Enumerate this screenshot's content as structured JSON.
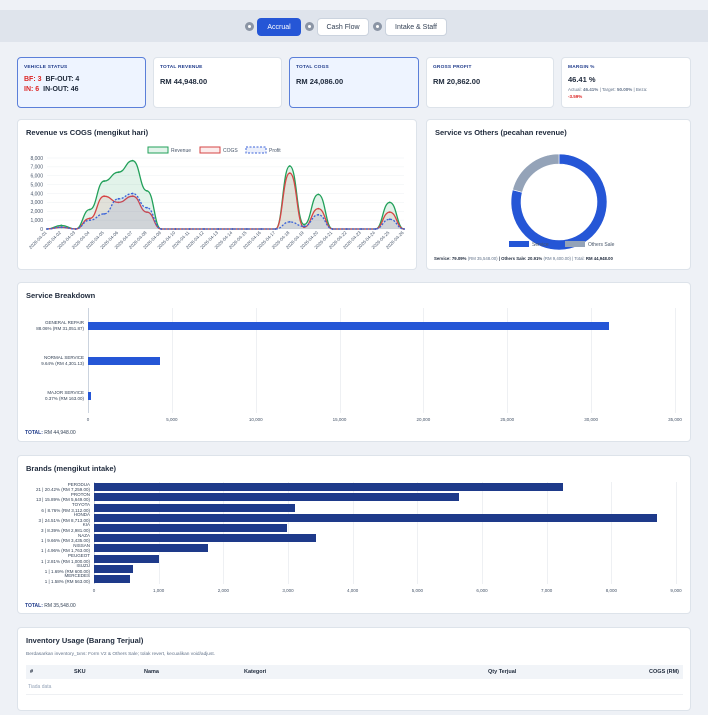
{
  "toolbar": {
    "tabs": [
      {
        "label": "Accrual",
        "active": true
      },
      {
        "label": "Cash Flow",
        "active": false
      },
      {
        "label": "Intake & Staff",
        "active": false
      }
    ]
  },
  "kpis": {
    "vehicle_status": {
      "label": "VEHICLE STATUS",
      "bf_label": "BF: 3",
      "bf_out": "BF-OUT: 4",
      "in_label": "IN: 6",
      "in_out": "IN-OUT: 46"
    },
    "total_revenue": {
      "label": "TOTAL REVENUE",
      "value": "RM 44,948.00"
    },
    "total_cogs": {
      "label": "TOTAL COGS",
      "value": "RM 24,086.00"
    },
    "gross_profit": {
      "label": "GROSS PROFIT",
      "value": "RM 20,862.00"
    },
    "margin": {
      "label": "MARGIN %",
      "value": "46.41 %",
      "actual_label": "Actual:",
      "actual_value": "46.41%",
      "target_label": "| Target:",
      "target_value": "50.00%",
      "beza_label": "| Beza:",
      "beza_value": "-3.59%"
    }
  },
  "colors": {
    "accent": "#2556d6",
    "revenue": "#22a05a",
    "cogs": "#d64545",
    "profit": "#3b63d8",
    "others": "#94a3b8",
    "negative": "#dc2626"
  },
  "revenue_chart": {
    "title": "Revenue vs COGS (mengikut hari)",
    "chart_data": {
      "type": "line",
      "x": [
        "2026-04-01",
        "2026-04-02",
        "2026-04-03",
        "2026-04-04",
        "2026-04-05",
        "2026-04-06",
        "2026-04-07",
        "2026-04-08",
        "2026-04-09",
        "2026-04-10",
        "2026-04-11",
        "2026-04-12",
        "2026-04-13",
        "2026-04-14",
        "2026-04-15",
        "2026-04-16",
        "2026-04-17",
        "2026-04-18",
        "2026-04-19",
        "2026-04-20",
        "2026-04-21",
        "2026-04-22",
        "2026-04-23",
        "2026-04-24",
        "2026-04-25",
        "2026-04-26"
      ],
      "tick_labels": [
        "2026-04-01",
        "2026-04-02",
        "2026-04-03",
        "2026-04-04",
        "2026-04-05",
        "2026-04-06",
        "2026-04-07",
        "2026-04-08",
        "2026-04-09",
        "2026-04-10",
        "2026-04-11",
        "2026-04-12",
        "2026-04-13",
        "2026-04-14",
        "2026-04-15",
        "2026-04-16",
        "2026-04-17",
        "2026-04-18",
        "2026-04-19",
        "2026-04-20",
        "2026-04-21",
        "2026-04-22",
        "2026-04-23",
        "2026-04-24",
        "2026-04-25",
        "2026-04-26"
      ],
      "series": [
        {
          "name": "Revenue",
          "values": [
            0,
            400,
            0,
            2200,
            5400,
            6400,
            7700,
            4300,
            0,
            0,
            0,
            0,
            0,
            0,
            0,
            0,
            0,
            7100,
            500,
            3900,
            0,
            0,
            0,
            0,
            3000,
            0
          ]
        },
        {
          "name": "COGS",
          "values": [
            0,
            200,
            0,
            1200,
            3700,
            3000,
            3700,
            1900,
            0,
            0,
            0,
            0,
            0,
            0,
            0,
            0,
            0,
            6300,
            200,
            2300,
            0,
            0,
            0,
            0,
            1900,
            0
          ]
        },
        {
          "name": "Profit",
          "values": [
            0,
            200,
            0,
            1000,
            1700,
            3400,
            4000,
            2400,
            0,
            0,
            0,
            0,
            0,
            0,
            0,
            0,
            0,
            800,
            300,
            1600,
            0,
            0,
            0,
            0,
            1100,
            0
          ]
        }
      ],
      "y_ticks": [
        "0",
        "1,000",
        "2,000",
        "3,000",
        "4,000",
        "5,000",
        "6,000",
        "7,000",
        "8,000"
      ],
      "ylim": [
        0,
        8000
      ],
      "legend": "top-center"
    }
  },
  "donut_chart": {
    "title": "Service vs Others (pecahan revenue)",
    "chart_data": {
      "type": "pie",
      "labels": [
        "Service",
        "Others Sale"
      ],
      "values": [
        79.09,
        20.91
      ]
    },
    "footer": {
      "service": "Service: 79.09%",
      "service_rm": "(RM 35,548.00)",
      "others": "| Others Sale: 20.91%",
      "others_rm": "(RM 9,400.00)",
      "total": "| Total:",
      "total_value": "RM 44,948.00"
    }
  },
  "service_chart": {
    "title": "Service Breakdown",
    "chart_data": {
      "type": "bar",
      "orientation": "horizontal",
      "categories": [
        {
          "name": "GENERAL REPAIR",
          "sub": "88.06% (RM 31,051.87)"
        },
        {
          "name": "NORMAL SERVICE",
          "sub": "9.64% (RM 4,301.13)"
        },
        {
          "name": "MAJOR SERVICE",
          "sub": "0.37% (RM 163.00)"
        }
      ],
      "values": [
        31051.87,
        4301.13,
        163.0
      ],
      "x_ticks": [
        "0",
        "5,000",
        "10,000",
        "15,000",
        "20,000",
        "25,000",
        "30,000",
        "35,000"
      ],
      "xlim": [
        0,
        35000
      ]
    },
    "total_label": "TOTAL:",
    "total_value": "RM 44,948.00"
  },
  "brands_chart": {
    "title": "Brands (mengikut intake)",
    "chart_data": {
      "type": "bar",
      "orientation": "horizontal",
      "categories": [
        {
          "name": "PERODUA",
          "sub": "21 | 20.42% (RM 7,259.00)"
        },
        {
          "name": "PROTON",
          "sub": "13 | 15.89% (RM 5,649.00)"
        },
        {
          "name": "TOYOTA",
          "sub": "6 | 8.76% (RM 3,112.00)"
        },
        {
          "name": "HONDA",
          "sub": "3 | 24.51% (RM 8,713.00)"
        },
        {
          "name": "KIA",
          "sub": "3 | 8.39% (RM 2,981.00)"
        },
        {
          "name": "NAZA",
          "sub": "1 | 9.66% (RM 3,435.00)"
        },
        {
          "name": "NISSAN",
          "sub": "1 | 4.96% (RM 1,763.00)"
        },
        {
          "name": "PEUGEOT",
          "sub": "1 | 2.81% (RM 1,000.00)"
        },
        {
          "name": "ISUZU",
          "sub": "1 | 1.69% (RM 600.00)"
        },
        {
          "name": "MERCEDES",
          "sub": "1 | 1.58% (RM 563.00)"
        }
      ],
      "values": [
        7259,
        5649,
        3112,
        8713,
        2981,
        3435,
        1763,
        1000,
        600,
        563
      ],
      "x_ticks": [
        "0",
        "1,000",
        "2,000",
        "3,000",
        "4,000",
        "5,000",
        "6,000",
        "7,000",
        "8,000",
        "9,000"
      ],
      "xlim": [
        0,
        9000
      ]
    },
    "total_label": "TOTAL:",
    "total_value": "RM 35,548.00"
  },
  "inventory": {
    "title": "Inventory Usage (Barang Terjual)",
    "subtitle": "Berdasarkan inventory_txns: Form V2 & Others Sale; tolak revert, kecualikan void/adjust.",
    "columns": [
      "#",
      "SKU",
      "Nama",
      "Kategori",
      "Qty Terjual",
      "COGS (RM)"
    ],
    "empty_text": "Tiada data"
  }
}
